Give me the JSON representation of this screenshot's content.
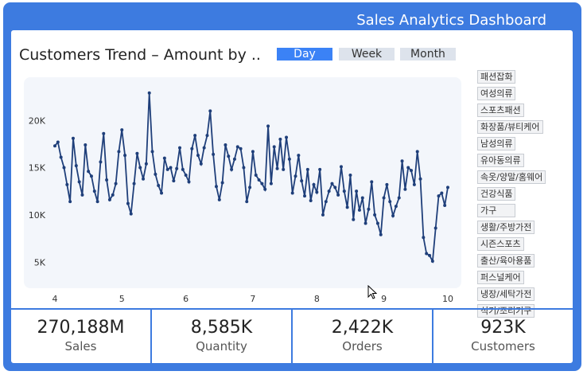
{
  "header": {
    "title": "Sales Analytics Dashboard"
  },
  "controls": {
    "buttons": [
      "Day",
      "Week",
      "Month"
    ],
    "active": "Day"
  },
  "chart_data": {
    "type": "line",
    "title": "Customers Trend – Amount by ..",
    "color": "#1f3f7a",
    "categories": [
      "4",
      null,
      null,
      null,
      null,
      null,
      null,
      null,
      null,
      null,
      null,
      null,
      null,
      null,
      null,
      null,
      null,
      null,
      null,
      null,
      null,
      null,
      "5",
      null,
      null,
      null,
      null,
      null,
      null,
      null,
      null,
      null,
      null,
      null,
      null,
      null,
      null,
      null,
      null,
      null,
      null,
      null,
      null,
      "6",
      null,
      null,
      null,
      null,
      null,
      null,
      null,
      null,
      null,
      null,
      null,
      null,
      null,
      null,
      null,
      null,
      null,
      null,
      null,
      null,
      null,
      "7",
      null,
      null,
      null,
      null,
      null,
      null,
      null,
      null,
      null,
      null,
      null,
      null,
      null,
      null,
      null,
      null,
      null,
      null,
      null,
      null,
      "8",
      null,
      null,
      null,
      null,
      null,
      null,
      null,
      null,
      null,
      null,
      null,
      null,
      null,
      null,
      null,
      null,
      null,
      null,
      null,
      null,
      null,
      "9",
      null,
      null,
      null,
      null,
      null,
      null,
      null,
      null,
      null,
      null,
      null,
      null,
      null,
      null,
      null,
      null,
      null,
      null,
      null,
      null,
      "10"
    ],
    "values": [
      17400,
      17800,
      16200,
      15100,
      13300,
      11500,
      18200,
      15300,
      13600,
      12200,
      17500,
      14700,
      14200,
      12600,
      11500,
      15700,
      18700,
      13800,
      11700,
      12200,
      13400,
      16800,
      19100,
      16400,
      11300,
      10200,
      13400,
      16600,
      15100,
      13900,
      15500,
      23000,
      16800,
      14400,
      13200,
      12400,
      16100,
      14900,
      15100,
      13700,
      15000,
      17200,
      14900,
      14300,
      13600,
      17100,
      18500,
      16400,
      15500,
      17200,
      18500,
      21100,
      16500,
      13100,
      11700,
      13500,
      17500,
      16300,
      14900,
      16000,
      17300,
      17100,
      15100,
      11500,
      13000,
      16800,
      14300,
      13800,
      13400,
      12800,
      19500,
      13400,
      17300,
      15000,
      18100,
      14900,
      18300,
      16000,
      12400,
      14200,
      16400,
      13700,
      12100,
      14900,
      11600,
      13300,
      12500,
      14900,
      10100,
      11500,
      12600,
      13400,
      13000,
      12200,
      15200,
      12600,
      10900,
      14300,
      9600,
      12600,
      10600,
      11900,
      9200,
      10700,
      13600,
      10100,
      9200,
      8000,
      11900,
      13300,
      11500,
      10000,
      11000,
      11900,
      15800,
      12800,
      15100,
      14800,
      13300,
      16800,
      13900,
      7700,
      6000,
      5800,
      5200,
      8700,
      12100,
      12400,
      11100,
      13000
    ],
    "ylim": [
      2500,
      24500
    ],
    "yticks": [
      {
        "value": 5000,
        "label": "5K"
      },
      {
        "value": 10000,
        "label": "10K"
      },
      {
        "value": 15000,
        "label": "15K"
      },
      {
        "value": 20000,
        "label": "20K"
      }
    ]
  },
  "category_filters": [
    "패션잡화",
    "여성의류",
    "스포츠패션",
    "화장품/뷰티케어",
    "남성의류",
    "유아동의류",
    "속옷/양말/홈웨어",
    "건강식품",
    "가구",
    "생활/주방가전",
    "시즌스포츠",
    "출산/육아용품",
    "퍼스널케어",
    "냉장/세탁가전",
    "식기/조리기구"
  ],
  "kpis": [
    {
      "value": "270,188M",
      "label": "Sales"
    },
    {
      "value": "8,585K",
      "label": "Quantity"
    },
    {
      "value": "2,422K",
      "label": "Orders"
    },
    {
      "value": "923K",
      "label": "Customers"
    }
  ]
}
